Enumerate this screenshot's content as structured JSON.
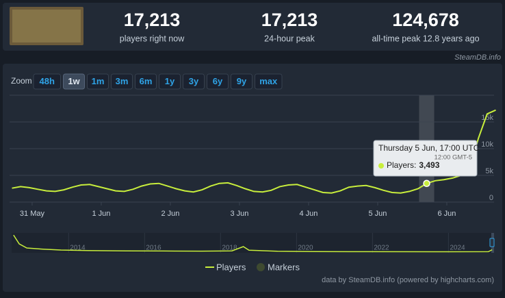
{
  "header": {
    "stats": [
      {
        "value": "17,213",
        "label": "players right now"
      },
      {
        "value": "17,213",
        "label": "24-hour peak"
      },
      {
        "value": "124,678",
        "label": "all-time peak 12.8 years ago"
      }
    ],
    "source": "SteamDB.info"
  },
  "zoom": {
    "label": "Zoom",
    "options": [
      "48h",
      "1w",
      "1m",
      "3m",
      "6m",
      "1y",
      "3y",
      "6y",
      "9y",
      "max"
    ],
    "active": "1w"
  },
  "credit": "data by SteamDB.info (powered by highcharts.com)",
  "chart_data": [
    {
      "type": "line",
      "x": [
        "30 May 17:00",
        "30 May 20:00",
        "30 May 23:00",
        "31 May 02:00",
        "31 May 05:00",
        "31 May 08:00",
        "31 May 11:00",
        "31 May 14:00",
        "31 May 17:00",
        "31 May 20:00",
        "31 May 23:00",
        "1 Jun 02:00",
        "1 Jun 05:00",
        "1 Jun 08:00",
        "1 Jun 11:00",
        "1 Jun 14:00",
        "1 Jun 17:00",
        "1 Jun 20:00",
        "1 Jun 23:00",
        "2 Jun 02:00",
        "2 Jun 05:00",
        "2 Jun 08:00",
        "2 Jun 11:00",
        "2 Jun 14:00",
        "2 Jun 17:00",
        "2 Jun 20:00",
        "2 Jun 23:00",
        "3 Jun 02:00",
        "3 Jun 05:00",
        "3 Jun 08:00",
        "3 Jun 11:00",
        "3 Jun 14:00",
        "3 Jun 17:00",
        "3 Jun 20:00",
        "3 Jun 23:00",
        "4 Jun 02:00",
        "4 Jun 05:00",
        "4 Jun 08:00",
        "4 Jun 11:00",
        "4 Jun 14:00",
        "4 Jun 17:00",
        "4 Jun 20:00",
        "4 Jun 23:00",
        "5 Jun 02:00",
        "5 Jun 05:00",
        "5 Jun 08:00",
        "5 Jun 11:00",
        "5 Jun 14:00",
        "5 Jun 17:00",
        "5 Jun 20:00",
        "5 Jun 23:00",
        "6 Jun 02:00",
        "6 Jun 05:00",
        "6 Jun 08:00",
        "6 Jun 11:00",
        "6 Jun 14:00",
        "6 Jun 17:00"
      ],
      "xticks": [
        "31 May",
        "1 Jun",
        "2 Jun",
        "3 Jun",
        "4 Jun",
        "5 Jun",
        "6 Jun"
      ],
      "series": [
        {
          "name": "Players",
          "color": "#c8ee3c",
          "values": [
            2600,
            2900,
            2700,
            2400,
            2100,
            2000,
            2300,
            2800,
            3200,
            3300,
            2900,
            2500,
            2100,
            2000,
            2400,
            3000,
            3400,
            3500,
            3000,
            2500,
            2100,
            1900,
            2300,
            3000,
            3500,
            3600,
            3100,
            2500,
            2000,
            1900,
            2200,
            2900,
            3200,
            3300,
            2800,
            2300,
            1800,
            1700,
            2100,
            2800,
            3000,
            3100,
            2700,
            2200,
            1800,
            1700,
            2000,
            2500,
            3493,
            4000,
            4200,
            4500,
            5000,
            6500,
            12000,
            16500,
            17213
          ],
          "value_labels": [
            null,
            null,
            null,
            null,
            null,
            null,
            null,
            null,
            null,
            null,
            null,
            null,
            null,
            null,
            null,
            null,
            null,
            null,
            null,
            null,
            null,
            null,
            null,
            null,
            null,
            null,
            null,
            null,
            null,
            null,
            null,
            null,
            null,
            null,
            null,
            null,
            null,
            null,
            null,
            null,
            null,
            null,
            null,
            null,
            null,
            null,
            null,
            null,
            "3,493",
            null,
            null,
            null,
            null,
            null,
            null,
            null,
            null
          ]
        }
      ],
      "markers": {
        "name": "Markers",
        "color": "#3e4a30"
      },
      "tooltip": {
        "title": "Thursday 5 Jun, 17:00 UTC",
        "subtitle": "12:00 GMT-5",
        "label": "Players:"
      },
      "ylim": [
        0,
        20000
      ],
      "yticks": [
        {
          "value": 0,
          "label": "0"
        },
        {
          "value": 5000,
          "label": "5k"
        },
        {
          "value": 10000,
          "label": "10k"
        },
        {
          "value": 15000,
          "label": "15k"
        }
      ],
      "grid": true
    },
    {
      "type": "line",
      "x": [
        2012.55,
        2012.7,
        2012.9,
        2013.3,
        2013.8,
        2014.5,
        2015.5,
        2016.5,
        2017.5,
        2018.3,
        2018.6,
        2018.75,
        2019.5,
        2020.5,
        2022,
        2024,
        2025.05,
        2025.15
      ],
      "series": [
        {
          "name": "Players",
          "color": "#c8ee3c",
          "values": [
            124678,
            60000,
            30000,
            22000,
            15000,
            11000,
            9000,
            8000,
            7000,
            9000,
            40000,
            14000,
            6000,
            4000,
            3000,
            2500,
            2800,
            17213
          ]
        }
      ],
      "xlim": [
        2012.5,
        2025.2
      ],
      "xticks": [
        2014,
        2016,
        2018,
        2020,
        2022,
        2024
      ],
      "ylim": [
        0,
        130000
      ]
    }
  ]
}
